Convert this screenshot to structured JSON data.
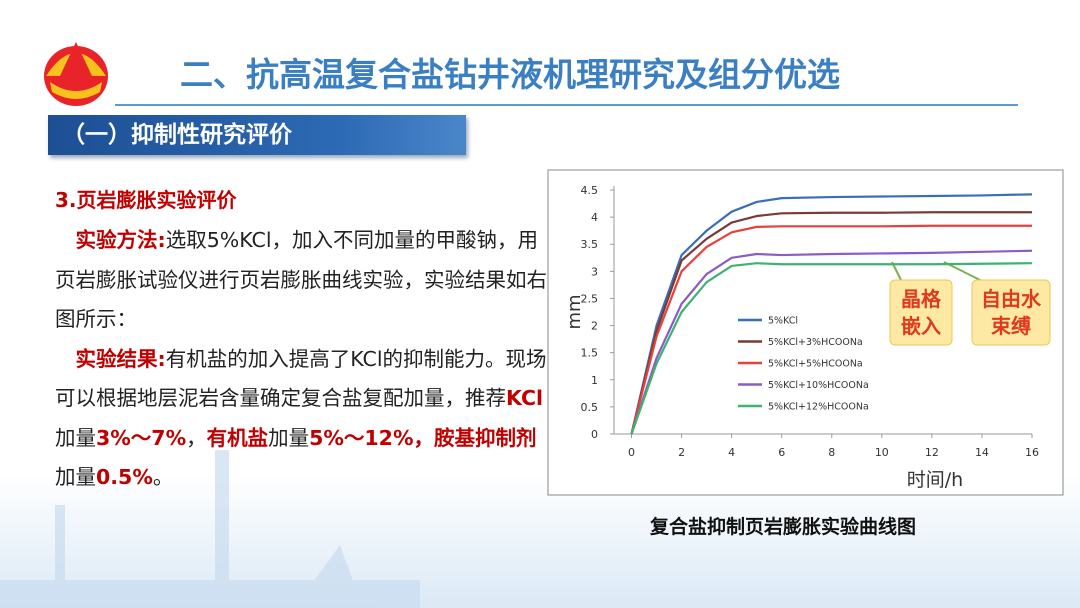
{
  "header": {
    "title": "二、抗高温复合盐钻井液机理研究及组分优选",
    "section": "（一）抑制性研究评价"
  },
  "body": {
    "heading": "3.页岩膨胀实验评价",
    "paragraphs": [
      [
        {
          "text": "实验方法:",
          "em": true
        },
        {
          "text": "选取5%KCl，加入不同加量的甲酸钠，用页岩膨胀试验仪进行页岩膨胀曲线实验，实验结果如右图所示：",
          "em": false
        }
      ],
      [
        {
          "text": "实验结果:",
          "em": true
        },
        {
          "text": "有机盐的加入提高了KCl的抑制能力。现场可以根据地层泥岩含量确定复合盐复配加量，推荐",
          "em": false
        },
        {
          "text": "KCl",
          "em": true
        },
        {
          "text": "加量",
          "em": false
        },
        {
          "text": "3%～7%",
          "em": true
        },
        {
          "text": "，",
          "em": false
        },
        {
          "text": "有机盐",
          "em": true
        },
        {
          "text": "加量",
          "em": false
        },
        {
          "text": "5%～12%，",
          "em": true
        },
        {
          "text": "胺基抑制剂",
          "em": true
        },
        {
          "text": "加量",
          "em": false
        },
        {
          "text": "0.5%",
          "em": true
        },
        {
          "text": "。",
          "em": false
        }
      ]
    ]
  },
  "chart_data": {
    "type": "line",
    "caption": "复合盐抑制页岩膨胀实验曲线图",
    "x_label": "时间/h",
    "y_label": "mm",
    "x": [
      0,
      1,
      2,
      3,
      4,
      5,
      6,
      8,
      10,
      12,
      14,
      16
    ],
    "series": [
      {
        "name": "5%KCl",
        "color": "#3a6fb5",
        "values": [
          0,
          2.0,
          3.3,
          3.75,
          4.1,
          4.28,
          4.35,
          4.37,
          4.38,
          4.39,
          4.4,
          4.42
        ]
      },
      {
        "name": "5%KCl+3%HCOONa",
        "color": "#7a3b35",
        "values": [
          0,
          1.9,
          3.2,
          3.6,
          3.9,
          4.02,
          4.07,
          4.08,
          4.08,
          4.09,
          4.09,
          4.09
        ]
      },
      {
        "name": "5%KCl+5%HCOONa",
        "color": "#e8413c",
        "values": [
          0,
          1.8,
          3.0,
          3.45,
          3.72,
          3.82,
          3.83,
          3.83,
          3.83,
          3.84,
          3.84,
          3.84
        ]
      },
      {
        "name": "5%KCl+10%HCOONa",
        "color": "#8b5cc4",
        "values": [
          0,
          1.4,
          2.4,
          2.95,
          3.25,
          3.32,
          3.3,
          3.32,
          3.33,
          3.34,
          3.36,
          3.38
        ]
      },
      {
        "name": "5%KCl+12%HCOONa",
        "color": "#3cb371",
        "values": [
          0,
          1.3,
          2.25,
          2.8,
          3.1,
          3.15,
          3.13,
          3.13,
          3.13,
          3.13,
          3.14,
          3.15
        ]
      }
    ],
    "xlim": [
      -0.7,
      16
    ],
    "xticks": [
      0,
      2,
      4,
      6,
      8,
      10,
      12,
      14,
      16
    ],
    "ylim": [
      0,
      4.5
    ],
    "yticks": [
      0,
      0.5,
      1,
      1.5,
      2,
      2.5,
      3,
      3.5,
      4,
      4.5
    ],
    "annotations": [
      [
        "晶格",
        "嵌入"
      ],
      [
        "自由水",
        "束缚"
      ]
    ]
  }
}
